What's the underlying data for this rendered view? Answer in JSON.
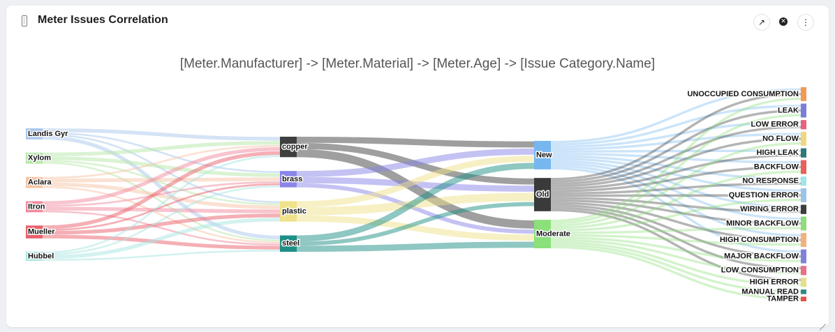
{
  "header": {
    "title": "Meter Issues Correlation"
  },
  "chart_data": {
    "type": "sankey",
    "title": "[Meter.Manufacturer] -> [Meter.Material] -> [Meter.Age] -> [Issue Category.Name]",
    "levels": [
      {
        "name": "Meter.Manufacturer",
        "nodes": [
          {
            "id": "Landis Gyr",
            "label": "Landis Gyr",
            "color": "#a9c8ec"
          },
          {
            "id": "Xylom",
            "label": "Xylom",
            "color": "#b6e8a8"
          },
          {
            "id": "Aclara",
            "label": "Aclara",
            "color": "#f7c4a6"
          },
          {
            "id": "Itron",
            "label": "Itron",
            "color": "#f2899d"
          },
          {
            "id": "Mueller",
            "label": "Mueller",
            "color": "#e9606b"
          },
          {
            "id": "Hubbel",
            "label": "Hubbel",
            "color": "#a8e6e1"
          }
        ]
      },
      {
        "name": "Meter.Material",
        "nodes": [
          {
            "id": "copper",
            "label": "copper",
            "color": "#3f3f3f"
          },
          {
            "id": "brass",
            "label": "brass",
            "color": "#8a86e8"
          },
          {
            "id": "plastic",
            "label": "plastic",
            "color": "#efe28a"
          },
          {
            "id": "steel",
            "label": "steel",
            "color": "#1f8f86"
          }
        ]
      },
      {
        "name": "Meter.Age",
        "nodes": [
          {
            "id": "New",
            "label": "New",
            "color": "#77b7f0"
          },
          {
            "id": "Old",
            "label": "Old",
            "color": "#3a3a3a"
          },
          {
            "id": "Moderate",
            "label": "Moderate",
            "color": "#8be07a"
          }
        ]
      },
      {
        "name": "Issue Category.Name",
        "nodes": [
          {
            "id": "UNOCCUPIED CONSUMPTION",
            "label": "UNOCCUPIED CONSUMPTION",
            "color": "#f39a52"
          },
          {
            "id": "LEAK",
            "label": "LEAK",
            "color": "#7b7ed8"
          },
          {
            "id": "LOW ERROR",
            "label": "LOW ERROR",
            "color": "#e9607c"
          },
          {
            "id": "NO FLOW",
            "label": "NO FLOW",
            "color": "#efd780"
          },
          {
            "id": "HIGH LEAK",
            "label": "HIGH LEAK",
            "color": "#2e7a78"
          },
          {
            "id": "BACKFLOW",
            "label": "BACKFLOW",
            "color": "#e8605a"
          },
          {
            "id": "NO RESPONSE",
            "label": "NO RESPONSE",
            "color": "#9ee6e8"
          },
          {
            "id": "QUESTION ERROR",
            "label": "QUESTION ERROR",
            "color": "#9cc3ea"
          },
          {
            "id": "WIRING ERROR",
            "label": "WIRING ERROR",
            "color": "#3c3c3c"
          },
          {
            "id": "MINOR BACKFLOW",
            "label": "MINOR BACKFLOW",
            "color": "#8fdc7a"
          },
          {
            "id": "HIGH CONSUMPTION",
            "label": "HIGH CONSUMPTION",
            "color": "#f2b27a"
          },
          {
            "id": "MAJOR BACKFLOW",
            "label": "MAJOR BACKFLOW",
            "color": "#7f82dc"
          },
          {
            "id": "LOW CONSUMPTION",
            "label": "LOW CONSUMPTION",
            "color": "#ec6e8a"
          },
          {
            "id": "HIGH ERROR",
            "label": "HIGH ERROR",
            "color": "#e6e08a"
          },
          {
            "id": "MANUAL READ",
            "label": "MANUAL READ",
            "color": "#2f8a88"
          },
          {
            "id": "TAMPER",
            "label": "TAMPER",
            "color": "#e8504e"
          }
        ]
      }
    ],
    "links": [
      {
        "source": "Landis Gyr",
        "target": "copper",
        "value": 2
      },
      {
        "source": "Landis Gyr",
        "target": "brass",
        "value": 1
      },
      {
        "source": "Landis Gyr",
        "target": "plastic",
        "value": 1
      },
      {
        "source": "Landis Gyr",
        "target": "steel",
        "value": 2
      },
      {
        "source": "Xylom",
        "target": "copper",
        "value": 2
      },
      {
        "source": "Xylom",
        "target": "brass",
        "value": 2
      },
      {
        "source": "Xylom",
        "target": "plastic",
        "value": 1
      },
      {
        "source": "Xylom",
        "target": "steel",
        "value": 1
      },
      {
        "source": "Aclara",
        "target": "copper",
        "value": 1
      },
      {
        "source": "Aclara",
        "target": "brass",
        "value": 2
      },
      {
        "source": "Aclara",
        "target": "plastic",
        "value": 2
      },
      {
        "source": "Aclara",
        "target": "steel",
        "value": 1
      },
      {
        "source": "Itron",
        "target": "copper",
        "value": 2
      },
      {
        "source": "Itron",
        "target": "brass",
        "value": 1
      },
      {
        "source": "Itron",
        "target": "plastic",
        "value": 2
      },
      {
        "source": "Itron",
        "target": "steel",
        "value": 1
      },
      {
        "source": "Mueller",
        "target": "copper",
        "value": 2
      },
      {
        "source": "Mueller",
        "target": "brass",
        "value": 1
      },
      {
        "source": "Mueller",
        "target": "plastic",
        "value": 2
      },
      {
        "source": "Mueller",
        "target": "steel",
        "value": 2
      },
      {
        "source": "Hubbel",
        "target": "copper",
        "value": 1
      },
      {
        "source": "Hubbel",
        "target": "brass",
        "value": 1
      },
      {
        "source": "Hubbel",
        "target": "plastic",
        "value": 2
      },
      {
        "source": "Hubbel",
        "target": "steel",
        "value": 1
      },
      {
        "source": "copper",
        "target": "New",
        "value": 3
      },
      {
        "source": "copper",
        "target": "Old",
        "value": 3
      },
      {
        "source": "copper",
        "target": "Moderate",
        "value": 4
      },
      {
        "source": "brass",
        "target": "New",
        "value": 3
      },
      {
        "source": "brass",
        "target": "Old",
        "value": 3
      },
      {
        "source": "brass",
        "target": "Moderate",
        "value": 2
      },
      {
        "source": "plastic",
        "target": "New",
        "value": 3
      },
      {
        "source": "plastic",
        "target": "Old",
        "value": 4
      },
      {
        "source": "plastic",
        "target": "Moderate",
        "value": 3
      },
      {
        "source": "steel",
        "target": "New",
        "value": 3
      },
      {
        "source": "steel",
        "target": "Old",
        "value": 2
      },
      {
        "source": "steel",
        "target": "Moderate",
        "value": 3
      },
      {
        "source": "New",
        "target": "UNOCCUPIED CONSUMPTION",
        "value": 1
      },
      {
        "source": "New",
        "target": "LEAK",
        "value": 1
      },
      {
        "source": "New",
        "target": "LOW ERROR",
        "value": 1
      },
      {
        "source": "New",
        "target": "NO FLOW",
        "value": 1
      },
      {
        "source": "New",
        "target": "HIGH LEAK",
        "value": 1
      },
      {
        "source": "New",
        "target": "BACKFLOW",
        "value": 1
      },
      {
        "source": "New",
        "target": "NO RESPONSE",
        "value": 1
      },
      {
        "source": "New",
        "target": "QUESTION ERROR",
        "value": 1
      },
      {
        "source": "New",
        "target": "WIRING ERROR",
        "value": 1
      },
      {
        "source": "New",
        "target": "MINOR BACKFLOW",
        "value": 1
      },
      {
        "source": "New",
        "target": "HIGH CONSUMPTION",
        "value": 1
      },
      {
        "source": "New",
        "target": "MAJOR BACKFLOW",
        "value": 1
      },
      {
        "source": "Old",
        "target": "UNOCCUPIED CONSUMPTION",
        "value": 1
      },
      {
        "source": "Old",
        "target": "LEAK",
        "value": 1
      },
      {
        "source": "Old",
        "target": "LOW ERROR",
        "value": 1
      },
      {
        "source": "Old",
        "target": "NO FLOW",
        "value": 1
      },
      {
        "source": "Old",
        "target": "HIGH LEAK",
        "value": 1
      },
      {
        "source": "Old",
        "target": "BACKFLOW",
        "value": 1
      },
      {
        "source": "Old",
        "target": "NO RESPONSE",
        "value": 1
      },
      {
        "source": "Old",
        "target": "QUESTION ERROR",
        "value": 1
      },
      {
        "source": "Old",
        "target": "WIRING ERROR",
        "value": 1
      },
      {
        "source": "Old",
        "target": "MINOR BACKFLOW",
        "value": 1
      },
      {
        "source": "Old",
        "target": "HIGH CONSUMPTION",
        "value": 1
      },
      {
        "source": "Old",
        "target": "MAJOR BACKFLOW",
        "value": 1
      },
      {
        "source": "Old",
        "target": "LOW CONSUMPTION",
        "value": 1
      },
      {
        "source": "Old",
        "target": "HIGH ERROR",
        "value": 1
      },
      {
        "source": "Moderate",
        "target": "UNOCCUPIED CONSUMPTION",
        "value": 1
      },
      {
        "source": "Moderate",
        "target": "LEAK",
        "value": 1
      },
      {
        "source": "Moderate",
        "target": "NO FLOW",
        "value": 1
      },
      {
        "source": "Moderate",
        "target": "BACKFLOW",
        "value": 1
      },
      {
        "source": "Moderate",
        "target": "QUESTION ERROR",
        "value": 1
      },
      {
        "source": "Moderate",
        "target": "MINOR BACKFLOW",
        "value": 1
      },
      {
        "source": "Moderate",
        "target": "HIGH CONSUMPTION",
        "value": 1
      },
      {
        "source": "Moderate",
        "target": "MAJOR BACKFLOW",
        "value": 1
      },
      {
        "source": "Moderate",
        "target": "LOW CONSUMPTION",
        "value": 1
      },
      {
        "source": "Moderate",
        "target": "HIGH ERROR",
        "value": 1
      },
      {
        "source": "Moderate",
        "target": "MANUAL READ",
        "value": 1
      },
      {
        "source": "Moderate",
        "target": "TAMPER",
        "value": 1
      }
    ]
  }
}
